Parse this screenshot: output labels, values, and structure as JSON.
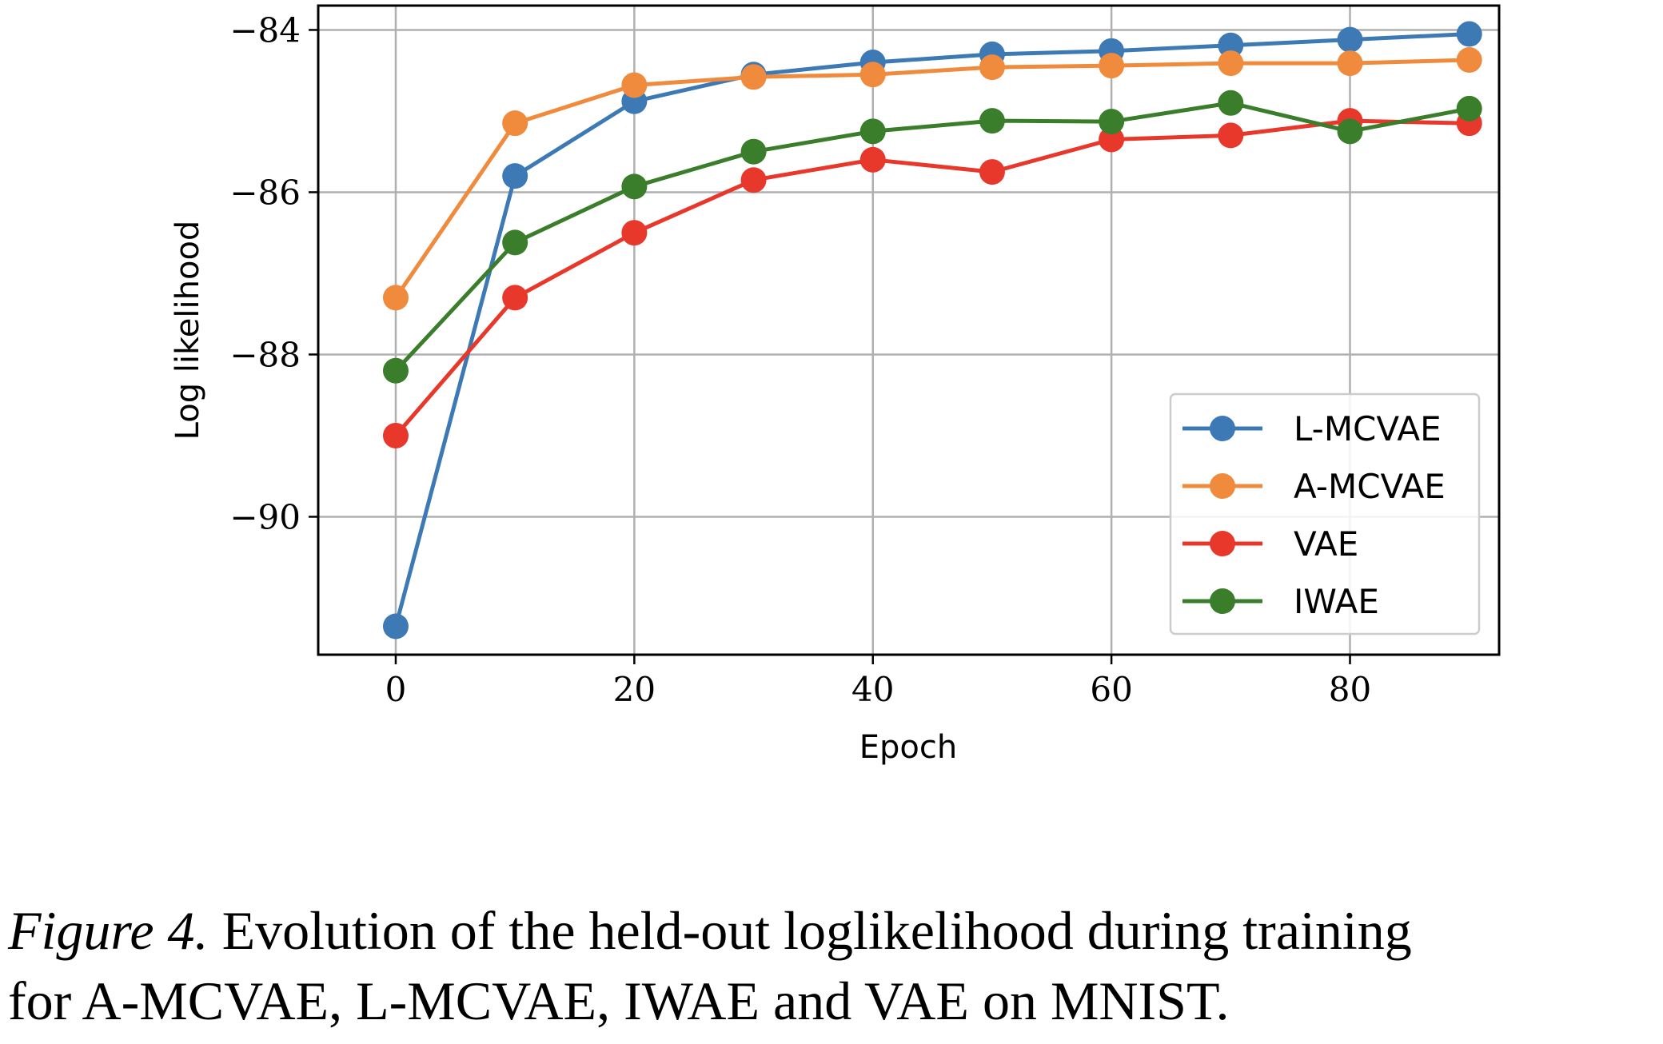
{
  "chart_data": {
    "type": "line",
    "xlabel": "Epoch",
    "ylabel": "Log likelihood",
    "xlim": [
      -6.5,
      92.5
    ],
    "ylim": [
      -91.7,
      -83.7
    ],
    "x_ticks": [
      0,
      20,
      40,
      60,
      80
    ],
    "y_ticks": [
      -84,
      -86,
      -88,
      -90
    ],
    "y_tick_labels": [
      "−84",
      "−86",
      "−88",
      "−90"
    ],
    "grid": true,
    "legend_position": "lower-right",
    "x": [
      0,
      10,
      20,
      30,
      40,
      50,
      60,
      70,
      80,
      90
    ],
    "series": [
      {
        "name": "L-MCVAE",
        "color": "#3d7ab5",
        "values": [
          -91.35,
          -85.8,
          -84.88,
          -84.55,
          -84.4,
          -84.3,
          -84.26,
          -84.19,
          -84.12,
          -84.05
        ]
      },
      {
        "name": "A-MCVAE",
        "color": "#f08a3c",
        "values": [
          -87.3,
          -85.15,
          -84.68,
          -84.58,
          -84.55,
          -84.46,
          -84.44,
          -84.41,
          -84.41,
          -84.37
        ]
      },
      {
        "name": "VAE",
        "color": "#e8372b",
        "values": [
          -89.0,
          -87.3,
          -86.5,
          -85.85,
          -85.6,
          -85.75,
          -85.35,
          -85.3,
          -85.12,
          -85.15
        ]
      },
      {
        "name": "IWAE",
        "color": "#3a7d2a",
        "values": [
          -88.2,
          -86.62,
          -85.93,
          -85.5,
          -85.25,
          -85.12,
          -85.13,
          -84.9,
          -85.25,
          -84.97
        ]
      }
    ]
  },
  "caption": {
    "label": "Figure 4.",
    "line1": "Evolution of the held-out loglikelihood during training",
    "line2": "for A-MCVAE, L-MCVAE, IWAE and VAE on MNIST."
  }
}
